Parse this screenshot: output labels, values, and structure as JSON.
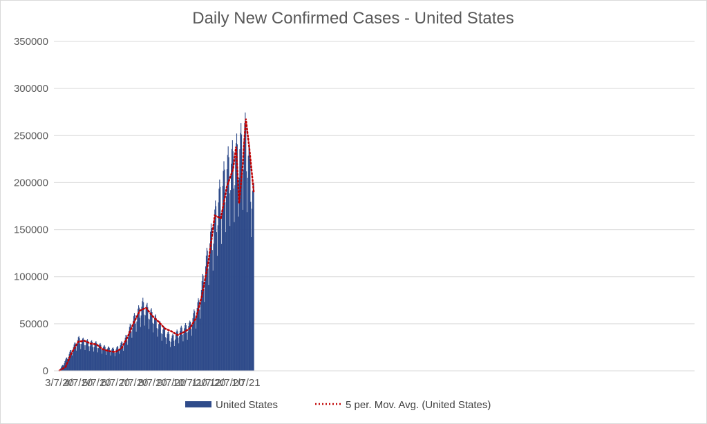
{
  "chart_data": {
    "type": "bar",
    "title": "Daily New Confirmed Cases - United States",
    "xlabel": "",
    "ylabel": "",
    "x_tick_labels": [
      "3/7/20",
      "4/7/20",
      "5/7/20",
      "6/7/20",
      "7/7/20",
      "8/7/20",
      "9/7/20",
      "10/7/20",
      "11/7/20",
      "12/7/20",
      "1/7/21"
    ],
    "y_tick_labels": [
      "0",
      "50000",
      "100000",
      "150000",
      "200000",
      "250000",
      "300000",
      "350000"
    ],
    "ylim": [
      0,
      350000
    ],
    "grid": true,
    "legend_position": "bottom",
    "colors": {
      "bars": "#2f4b8a",
      "moving_average": "#c00000"
    },
    "series": [
      {
        "name": "United States",
        "kind": "bar",
        "anchor_dates": [
          "3/7/20",
          "3/22/20",
          "4/7/20",
          "4/22/20",
          "5/7/20",
          "5/22/20",
          "6/7/20",
          "6/22/20",
          "7/7/20",
          "7/22/20",
          "8/7/20",
          "8/22/20",
          "9/7/20",
          "9/22/20",
          "10/7/20",
          "10/22/20",
          "11/7/20",
          "11/22/20",
          "12/7/20",
          "12/22/20",
          "1/7/21",
          "1/20/21"
        ],
        "anchor_values": [
          400,
          16000,
          32000,
          29000,
          27000,
          23000,
          21000,
          30000,
          52000,
          67000,
          56000,
          43000,
          33000,
          41000,
          46000,
          68000,
          123000,
          168000,
          204000,
          216000,
          238000,
          172000
        ]
      },
      {
        "name": "5 per. Mov. Avg. (United States)",
        "kind": "line",
        "dates": [
          "3/7/20",
          "3/17/20",
          "3/27/20",
          "4/7/20",
          "4/17/20",
          "4/27/20",
          "5/7/20",
          "5/17/20",
          "5/27/20",
          "6/7/20",
          "6/17/20",
          "6/27/20",
          "7/7/20",
          "7/17/20",
          "7/27/20",
          "8/7/20",
          "8/17/20",
          "8/27/20",
          "9/7/20",
          "9/17/20",
          "9/27/20",
          "10/7/20",
          "10/17/20",
          "10/27/20",
          "11/7/20",
          "11/17/20",
          "11/27/20",
          "12/7/20",
          "12/17/20",
          "12/22/20",
          "12/27/20",
          "1/2/21",
          "1/7/21",
          "1/13/21",
          "1/20/21"
        ],
        "values": [
          300,
          4000,
          19000,
          31000,
          32000,
          29000,
          28000,
          23000,
          21000,
          20000,
          24000,
          36000,
          51000,
          64000,
          67000,
          58000,
          52000,
          45000,
          42000,
          38000,
          41000,
          45000,
          56000,
          80000,
          118000,
          165000,
          162000,
          196000,
          214000,
          238000,
          178000,
          220000,
          268000,
          235000,
          190000
        ]
      }
    ]
  }
}
